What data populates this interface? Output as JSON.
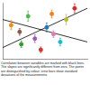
{
  "chart_data": {
    "type": "scatter",
    "annotations": [
      "Correlation between variables are marked with black lines. The slopes are significantly different from zero. The points are distinguished by colour; error bars show standard deviations of the measurements."
    ],
    "xlim": [
      0,
      10
    ],
    "ylim": [
      0,
      10
    ],
    "xticks": [
      0,
      5,
      10
    ],
    "yticks": [
      0,
      5,
      10
    ],
    "tick_labels": false,
    "grid": false,
    "points": {
      "x": [
        1.0,
        2.2,
        3.0,
        3.8,
        4.5,
        5.2,
        6.0,
        6.8,
        7.5,
        8.5,
        2.0,
        5.8
      ],
      "y": [
        6.0,
        2.6,
        7.6,
        3.6,
        1.6,
        5.6,
        4.4,
        3.0,
        7.0,
        9.0,
        4.8,
        8.0
      ],
      "colors": [
        "#f08a1c",
        "#2ca02c",
        "#4bb84b",
        "#9b59b6",
        "#e0302a",
        "#1f77b4",
        "#e377c2",
        "#17becf",
        "#bcbd22",
        "#d62728",
        "#8c564b",
        "#ff7f0e"
      ],
      "y_error": [
        0.8,
        0.6,
        0.9,
        0.7,
        0.5,
        0.8,
        0.6,
        0.7,
        0.9,
        0.8,
        0.6,
        0.7
      ],
      "marker": "circle"
    },
    "lines": [
      {
        "x": [
          0,
          10
        ],
        "values": [
          2.0,
          9.0
        ],
        "color": "#000000",
        "line_style": "solid"
      },
      {
        "x": [
          0,
          10
        ],
        "values": [
          7.0,
          3.0
        ],
        "color": "#000000",
        "line_style": "solid"
      }
    ]
  }
}
